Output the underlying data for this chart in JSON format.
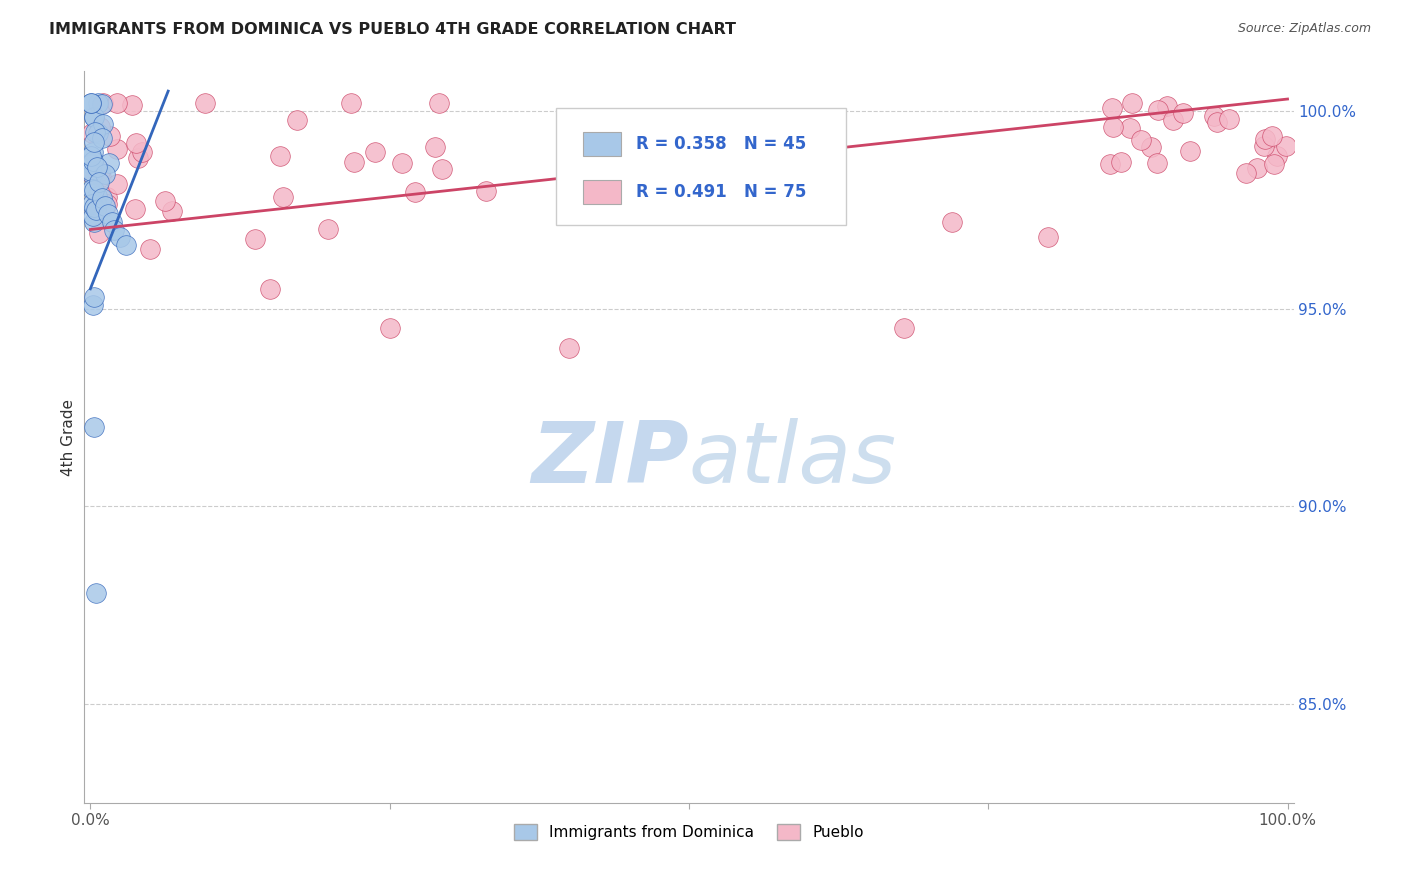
{
  "title": "IMMIGRANTS FROM DOMINICA VS PUEBLO 4TH GRADE CORRELATION CHART",
  "source": "Source: ZipAtlas.com",
  "ylabel": "4th Grade",
  "legend_r1": "R = 0.358",
  "legend_n1": "N = 45",
  "legend_r2": "R = 0.491",
  "legend_n2": "N = 75",
  "blue_color": "#a8c8e8",
  "pink_color": "#f4b8c8",
  "blue_line_color": "#3366bb",
  "pink_line_color": "#cc4466",
  "right_tick_color": "#3366cc",
  "legend_text_color": "#3366cc",
  "background_color": "#ffffff",
  "grid_color": "#cccccc",
  "spine_color": "#aaaaaa",
  "watermark_color": "#dce8f5",
  "ylim_low": 0.825,
  "ylim_high": 1.01,
  "xlim_low": -0.005,
  "xlim_high": 1.005,
  "yticks": [
    0.85,
    0.9,
    0.95,
    1.0
  ],
  "ytick_labels": [
    "85.0%",
    "90.0%",
    "95.0%",
    "100.0%"
  ],
  "xticks": [
    0.0,
    0.25,
    0.5,
    0.75,
    1.0
  ],
  "xtick_labels_show": [
    "0.0%",
    "",
    "",
    "",
    "100.0%"
  ],
  "blue_line_x": [
    0.0,
    0.065
  ],
  "blue_line_y": [
    0.955,
    1.005
  ],
  "pink_line_x": [
    0.0,
    1.0
  ],
  "pink_line_y": [
    0.97,
    1.003
  ]
}
